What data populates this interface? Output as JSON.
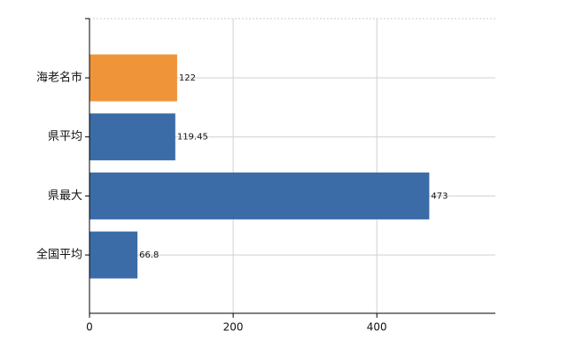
{
  "chart_data": {
    "type": "bar",
    "orientation": "horizontal",
    "categories": [
      "海老名市",
      "県平均",
      "県最大",
      "全国平均"
    ],
    "values": [
      122,
      119.45,
      473,
      66.8
    ],
    "colors": [
      "#f0943a",
      "#3b6ca8",
      "#3b6ca8",
      "#3b6ca8"
    ],
    "xlim": [
      0,
      565
    ],
    "xticks": [
      0,
      200,
      400
    ],
    "grid": true
  }
}
